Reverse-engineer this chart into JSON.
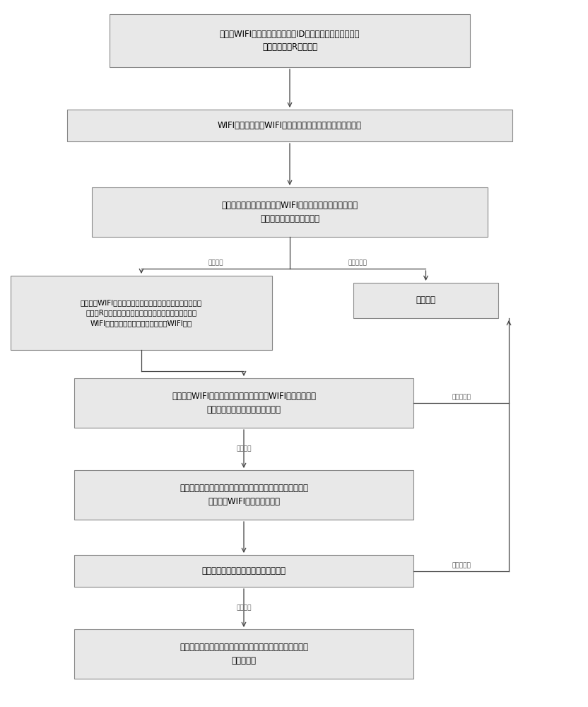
{
  "bg_color": "#ffffff",
  "box_fill": "#e8e8e8",
  "box_edge": "#888888",
  "box_edge_width": 0.8,
  "arrow_color": "#444444",
  "text_color": "#000000",
  "label_fontsize": 8.5,
  "small_fontsize": 6.5,
  "box1_text": "用车载WIFI模块的编号作为标识ID，计算出对应私钥，用该\n私钥对随机数R进行签名",
  "box2_text": "WIFI接入点将迷你WIFI模块编号和数字签名信息传送至后台",
  "box3_text": "后台接收到信息后，用迷你WIFI模块的编号映射出公钥，用\n公钥对此签名信息进行验签",
  "box4l_text": "后台利用WIFI接入点的唯一标识，映射出私钥，用此私钥对\n随机数R进行数字签名（即反馈签名），将此签名信息和\nWIFI接入点的唯一标识发给车载迷你WIFI模块",
  "box4r_text": "流程结束",
  "box5_text": "车载迷你WIFI模块收到签名信息后，利用WIFI接入点的唯一\n标识映射出公钥，用公钥进行验签",
  "box6_text": "用该公钥对车辆信息进行加密，同时用自己私钥生成数字签\n名，通过WIFI接入点传至后台",
  "box7_text": "后台收到信息后，对签名信息进行验签",
  "box8_text": "验签通过后用私钥进行解密，得到账户及车辆信息，开始计\n时和计费。",
  "label_pass": "验签通过",
  "label_fail": "验签不通过"
}
